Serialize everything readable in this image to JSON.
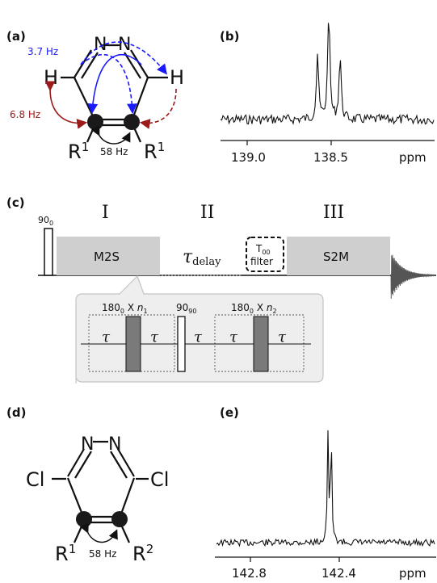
{
  "panel_a": {
    "label": "(a)",
    "n_left": "N",
    "n_right": "N",
    "h_left": "H",
    "h_right": "H",
    "r_left": "R",
    "r_left_sup": "1",
    "r_right": "R",
    "r_right_sup": "1",
    "coupling_blue": "3.7 Hz",
    "coupling_red": "6.8 Hz",
    "coupling_cc": "58 Hz",
    "colors": {
      "blue": "#1a1aff",
      "red": "#9b1b1b"
    }
  },
  "panel_b": {
    "label": "(b)",
    "tick_left": "139.0",
    "tick_right": "138.5",
    "unit": "ppm"
  },
  "panel_c": {
    "label": "(c)",
    "pulse_90": "90",
    "pulse_90_sub": "0",
    "section_1": "I",
    "section_2": "II",
    "section_3": "III",
    "block_m2s": "M2S",
    "tau_delay": "τ",
    "tau_delay_sub": "delay",
    "filter_line1": "T",
    "filter_line1_sub": "00",
    "filter_line2": "filter",
    "block_s2m": "S2M",
    "inset": {
      "echo1_label": "180",
      "echo1_sub": "0",
      "echo1_x": " X ",
      "echo1_n": "n",
      "echo1_nsub": "1",
      "mid_label": "90",
      "mid_sub": "90",
      "echo2_label": "180",
      "echo2_sub": "0",
      "echo2_x": " X ",
      "echo2_n": "n",
      "echo2_nsub": "2",
      "tau": "τ"
    }
  },
  "panel_d": {
    "label": "(d)",
    "n_left": "N",
    "n_right": "N",
    "cl_left": "Cl",
    "cl_right": "Cl",
    "r_left": "R",
    "r_left_sup": "1",
    "r_right": "R",
    "r_right_sup": "2",
    "coupling_cc": "58 Hz"
  },
  "panel_e": {
    "label": "(e)",
    "tick_left": "142.8",
    "tick_right": "142.4",
    "unit": "ppm"
  }
}
